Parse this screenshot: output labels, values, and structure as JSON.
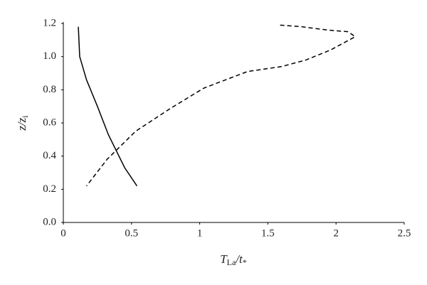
{
  "chart_data": {
    "type": "line",
    "xlabel": [
      "T",
      "La",
      "/t",
      "*"
    ],
    "ylabel": [
      "z/z",
      "i"
    ],
    "xlim": [
      0,
      2.5
    ],
    "xticks": [
      0,
      0.5,
      1,
      1.5,
      2,
      2.5
    ],
    "ylim": [
      0,
      1.2
    ],
    "yticks": [
      {
        "value": 0,
        "label": "0.0"
      },
      0.2,
      0.4,
      0.6,
      0.8,
      {
        "value": 1,
        "label": "1.0"
      },
      1.2
    ],
    "grid": false,
    "series": [
      {
        "color": "#000000",
        "linestyle": "solid",
        "x": [
          0.11,
          0.12,
          0.17,
          0.25,
          0.33,
          0.39,
          0.45,
          0.54
        ],
        "values": [
          1.18,
          1.0,
          0.86,
          0.7,
          0.53,
          0.43,
          0.33,
          0.22
        ]
      },
      {
        "color": "#000000",
        "linestyle": "dashed",
        "x": [
          1.59,
          1.75,
          1.94,
          2.09,
          2.14,
          1.96,
          1.78,
          1.6,
          1.35,
          1.03,
          0.79,
          0.53,
          0.32,
          0.17
        ],
        "values": [
          1.19,
          1.18,
          1.16,
          1.15,
          1.12,
          1.04,
          0.98,
          0.94,
          0.91,
          0.81,
          0.69,
          0.55,
          0.38,
          0.22
        ]
      }
    ]
  }
}
